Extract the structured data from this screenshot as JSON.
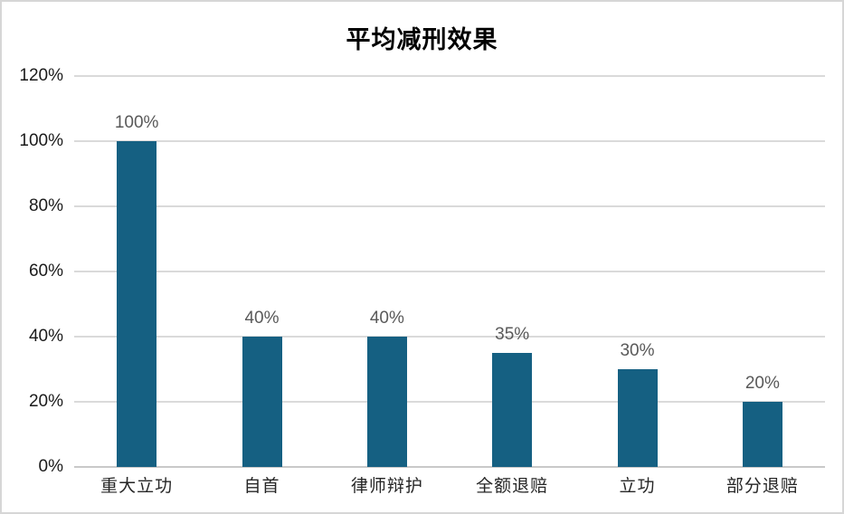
{
  "chart_data": {
    "type": "bar",
    "title": "平均减刑效果",
    "categories": [
      "重大立功",
      "自首",
      "律师辩护",
      "全额退赔",
      "立功",
      "部分退赔"
    ],
    "values": [
      100,
      40,
      40,
      35,
      30,
      20
    ],
    "data_labels": [
      "100%",
      "40%",
      "40%",
      "35%",
      "30%",
      "20%"
    ],
    "y_tick_values": [
      0,
      20,
      40,
      60,
      80,
      100,
      120
    ],
    "y_ticks": [
      "0%",
      "20%",
      "40%",
      "60%",
      "80%",
      "100%",
      "120%"
    ],
    "ylim": [
      0,
      120
    ],
    "xlabel": "",
    "ylabel": "",
    "grid": "horizontal",
    "legend": "none",
    "colors": {
      "bar": "#156082",
      "gridline": "#dadada",
      "axis_line": "#c9c9c9",
      "data_label": "#595959",
      "tick_label": "#1a1a1a",
      "category_label": "#262626",
      "title": "#000000",
      "background": "#ffffff",
      "border": "#d6d6d6"
    }
  }
}
